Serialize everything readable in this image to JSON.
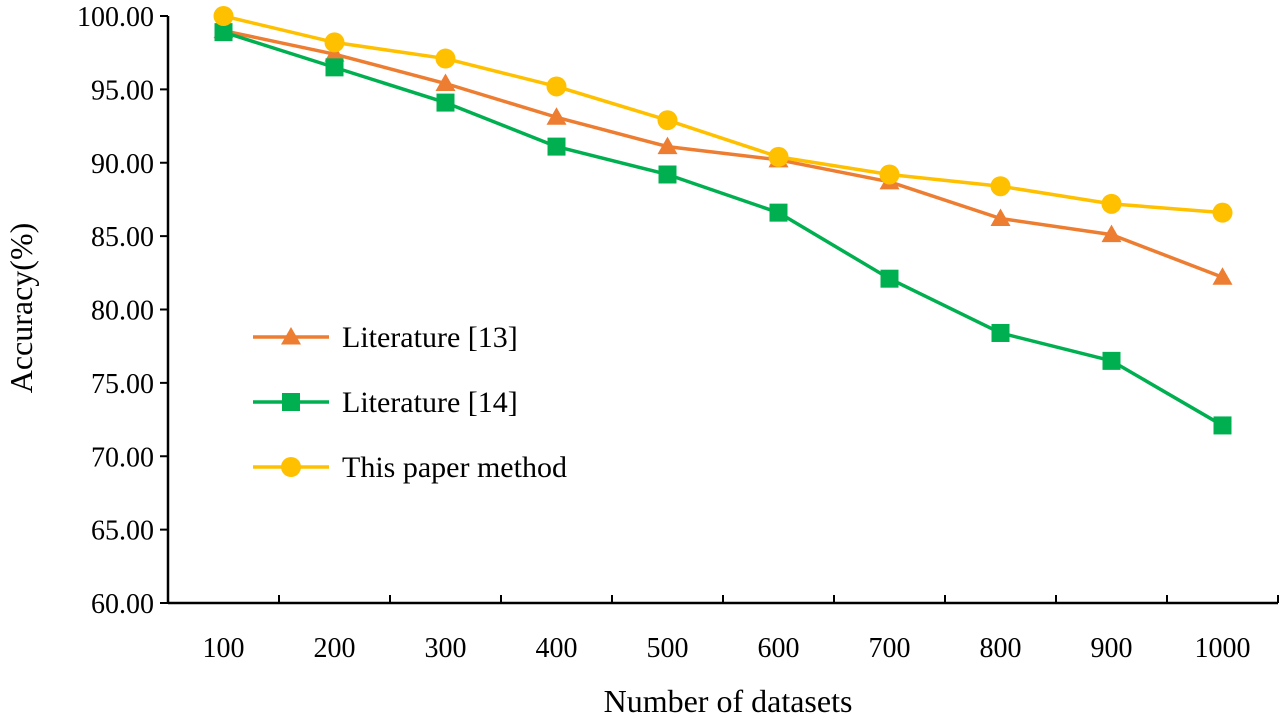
{
  "chart_data": {
    "type": "line",
    "title": "",
    "xlabel": "Number of datasets",
    "ylabel": "Accuracy(%)",
    "x": [
      100,
      200,
      300,
      400,
      500,
      600,
      700,
      800,
      900,
      1000
    ],
    "x_tick_labels": [
      "100",
      "200",
      "300",
      "400",
      "500",
      "600",
      "700",
      "800",
      "900",
      "1000"
    ],
    "ylim": [
      60,
      100
    ],
    "y_ticks": [
      60,
      65,
      70,
      75,
      80,
      85,
      90,
      95,
      100
    ],
    "y_tick_labels": [
      "60.00",
      "65.00",
      "70.00",
      "75.00",
      "80.00",
      "85.00",
      "90.00",
      "95.00",
      "100.00"
    ],
    "grid": false,
    "legend_position": "left",
    "series": [
      {
        "name": "Literature [13]",
        "color": "#ED7D31",
        "marker": "triangle",
        "values": [
          99.0,
          97.4,
          95.4,
          93.1,
          91.1,
          90.2,
          88.7,
          86.2,
          85.1,
          82.2
        ]
      },
      {
        "name": "Literature [14]",
        "color": "#00B050",
        "marker": "square",
        "values": [
          98.9,
          96.5,
          94.1,
          91.1,
          89.2,
          86.6,
          82.1,
          78.4,
          76.5,
          72.1
        ]
      },
      {
        "name": "This paper method",
        "color": "#FFC000",
        "marker": "circle",
        "values": [
          100.0,
          98.2,
          97.1,
          95.2,
          92.9,
          90.4,
          89.2,
          88.4,
          87.2,
          86.6
        ]
      }
    ]
  }
}
